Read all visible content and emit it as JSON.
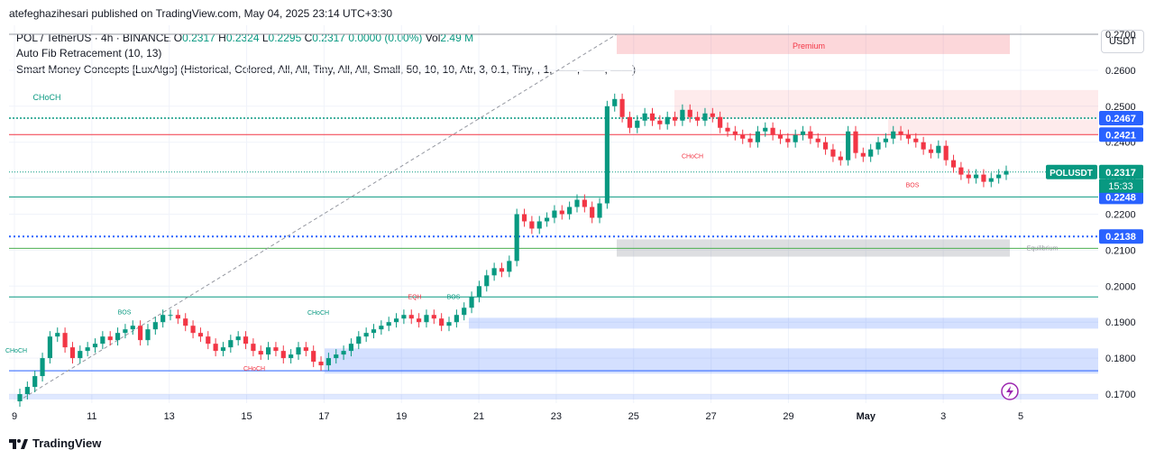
{
  "header": {
    "published": "atefeghazihesari published on TradingView.com, May 04, 2025 23:14 UTC+3:30"
  },
  "legend": {
    "symbol": "POL / TetherUS · 4h · BINANCE",
    "o_label": "O",
    "o": "0.2317",
    "h_label": "H",
    "h": "0.2324",
    "l_label": "L",
    "l": "0.2295",
    "c_label": "C",
    "c": "0.2317",
    "chg": "0.0000 (0.00%)",
    "vol_label": "Vol",
    "vol": "2.49 M",
    "ind1": "Auto Fib Retracement (10, 13)",
    "ind2": "Smart Money Concepts [LuxAlgo] (Historical, Colored, All, All, Tiny, All, All, Small, 50, 10, 10, Atr, 3, 0.1, Tiny, , 1, ——, ——, ——)"
  },
  "currency": "USDT",
  "footer": {
    "brand": "TradingView"
  },
  "colors": {
    "up": "#089981",
    "down": "#f23645",
    "blue": "#2962ff",
    "grid": "#f0f3fa"
  },
  "chart_data": {
    "type": "candlestick",
    "y_range": [
      0.1675,
      0.2725
    ],
    "y_ticks": [
      "0.2700",
      "0.2600",
      "0.2500",
      "0.2400",
      "0.2300",
      "0.2200",
      "0.2100",
      "0.2000",
      "0.1900",
      "0.1800",
      "0.1700"
    ],
    "x_ticks": [
      "9",
      "11",
      "13",
      "15",
      "17",
      "19",
      "21",
      "23",
      "25",
      "27",
      "29",
      "May",
      "3",
      "5"
    ],
    "price_labels": [
      {
        "text": "0.2467",
        "value": 0.2467
      },
      {
        "text": "0.2421",
        "value": 0.2421
      },
      {
        "text": "0.2317",
        "value": 0.2317
      },
      {
        "text": "0.2248",
        "value": 0.2248
      },
      {
        "text": "0.2138",
        "value": 0.2138
      }
    ],
    "current": {
      "symbol": "POLUSDT",
      "price": "0.2317",
      "countdown": "15:33"
    },
    "annotations": [
      "Premium",
      "CHoCH",
      "CHoCH",
      "BOS",
      "Equilibrium",
      "BOS",
      "CHoCH",
      "EQH",
      "BOS",
      "CHoCH",
      "CHoCH"
    ],
    "close": [
      0.17,
      0.172,
      0.175,
      0.18,
      0.186,
      0.187,
      0.183,
      0.18,
      0.182,
      0.183,
      0.184,
      0.186,
      0.185,
      0.187,
      0.188,
      0.189,
      0.185,
      0.188,
      0.19,
      0.192,
      0.192,
      0.191,
      0.189,
      0.187,
      0.186,
      0.184,
      0.182,
      0.183,
      0.185,
      0.186,
      0.184,
      0.182,
      0.181,
      0.183,
      0.182,
      0.18,
      0.181,
      0.183,
      0.182,
      0.179,
      0.178,
      0.18,
      0.181,
      0.182,
      0.184,
      0.186,
      0.187,
      0.188,
      0.189,
      0.19,
      0.191,
      0.192,
      0.191,
      0.19,
      0.192,
      0.191,
      0.189,
      0.19,
      0.192,
      0.194,
      0.197,
      0.2,
      0.203,
      0.205,
      0.204,
      0.207,
      0.22,
      0.218,
      0.216,
      0.218,
      0.219,
      0.221,
      0.22,
      0.222,
      0.224,
      0.222,
      0.219,
      0.223,
      0.25,
      0.252,
      0.247,
      0.244,
      0.246,
      0.248,
      0.246,
      0.245,
      0.247,
      0.246,
      0.249,
      0.247,
      0.246,
      0.248,
      0.247,
      0.244,
      0.243,
      0.242,
      0.241,
      0.24,
      0.243,
      0.244,
      0.242,
      0.241,
      0.24,
      0.242,
      0.243,
      0.241,
      0.24,
      0.238,
      0.236,
      0.235,
      0.243,
      0.237,
      0.236,
      0.238,
      0.24,
      0.241,
      0.243,
      0.242,
      0.241,
      0.24,
      0.238,
      0.237,
      0.239,
      0.235,
      0.233,
      0.231,
      0.23,
      0.231,
      0.229,
      0.23,
      0.231,
      0.232
    ]
  }
}
